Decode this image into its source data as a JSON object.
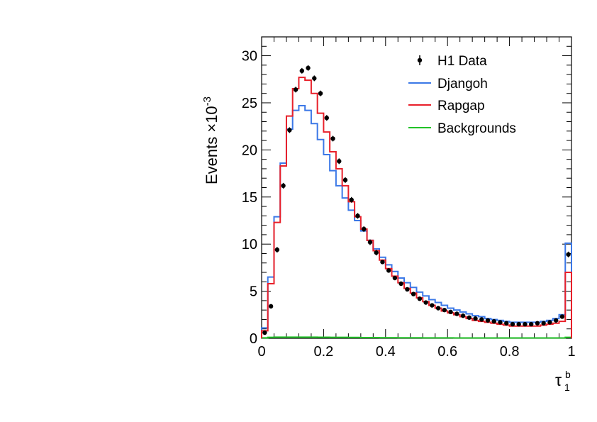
{
  "chart_data": {
    "type": "line",
    "xlabel_main": "τ",
    "xlabel_sub": "1",
    "xlabel_sup": "b",
    "ylabel": "Events  ×10",
    "ylabel_exp": "-3",
    "xlim": [
      0,
      1
    ],
    "ylim": [
      0,
      32
    ],
    "x_ticks": [
      0,
      0.2,
      0.4,
      0.6,
      0.8,
      1
    ],
    "x_tick_labels": [
      "0",
      "0.2",
      "0.4",
      "0.6",
      "0.8",
      "1"
    ],
    "y_ticks": [
      0,
      5,
      10,
      15,
      20,
      25,
      30
    ],
    "y_tick_labels": [
      "0",
      "5",
      "10",
      "15",
      "20",
      "25",
      "30"
    ],
    "bin_width": 0.02,
    "bins": 50,
    "legend": {
      "placement": "top-right",
      "entries": [
        "H1 Data",
        "Djangoh",
        "Rapgap",
        "Backgrounds"
      ]
    },
    "series": [
      {
        "name": "H1 Data",
        "kind": "points",
        "color": "#000000",
        "x": [
          0.01,
          0.03,
          0.05,
          0.07,
          0.09,
          0.11,
          0.13,
          0.15,
          0.17,
          0.19,
          0.21,
          0.23,
          0.25,
          0.27,
          0.29,
          0.31,
          0.33,
          0.35,
          0.37,
          0.39,
          0.41,
          0.43,
          0.45,
          0.47,
          0.49,
          0.51,
          0.53,
          0.55,
          0.57,
          0.59,
          0.61,
          0.63,
          0.65,
          0.67,
          0.69,
          0.71,
          0.73,
          0.75,
          0.77,
          0.79,
          0.81,
          0.83,
          0.85,
          0.87,
          0.89,
          0.91,
          0.93,
          0.95,
          0.97,
          0.99
        ],
        "values": [
          0.6,
          3.4,
          9.4,
          16.2,
          22.1,
          26.4,
          28.4,
          28.7,
          27.6,
          26.0,
          23.4,
          21.2,
          18.8,
          16.8,
          14.7,
          13.0,
          11.6,
          10.2,
          9.1,
          8.1,
          7.2,
          6.4,
          5.8,
          5.2,
          4.7,
          4.2,
          3.8,
          3.5,
          3.2,
          3.0,
          2.8,
          2.6,
          2.4,
          2.2,
          2.1,
          2.0,
          1.9,
          1.8,
          1.7,
          1.6,
          1.5,
          1.5,
          1.5,
          1.5,
          1.6,
          1.6,
          1.7,
          1.9,
          2.3,
          8.9
        ],
        "errors": [
          0.2,
          0.2,
          0.3,
          0.3,
          0.3,
          0.3,
          0.3,
          0.3,
          0.3,
          0.3,
          0.3,
          0.3,
          0.3,
          0.3,
          0.3,
          0.3,
          0.3,
          0.3,
          0.3,
          0.2,
          0.2,
          0.2,
          0.2,
          0.2,
          0.2,
          0.2,
          0.2,
          0.2,
          0.2,
          0.2,
          0.2,
          0.2,
          0.2,
          0.2,
          0.2,
          0.2,
          0.2,
          0.2,
          0.2,
          0.2,
          0.2,
          0.2,
          0.2,
          0.2,
          0.2,
          0.2,
          0.2,
          0.2,
          0.2,
          0.3
        ]
      },
      {
        "name": "Djangoh",
        "kind": "hist",
        "color": "#3b78e7",
        "values": [
          1.1,
          6.5,
          12.9,
          18.6,
          22.2,
          24.2,
          24.7,
          24.2,
          22.8,
          21.1,
          19.5,
          17.8,
          16.2,
          14.9,
          13.6,
          12.5,
          11.4,
          10.4,
          9.5,
          8.6,
          7.8,
          7.1,
          6.4,
          5.9,
          5.4,
          4.9,
          4.5,
          4.1,
          3.8,
          3.5,
          3.2,
          3.0,
          2.8,
          2.6,
          2.4,
          2.3,
          2.1,
          2.0,
          1.9,
          1.8,
          1.7,
          1.7,
          1.7,
          1.7,
          1.7,
          1.8,
          1.9,
          2.1,
          2.5,
          10.1
        ]
      },
      {
        "name": "Rapgap",
        "kind": "hist",
        "color": "#e8202a",
        "values": [
          0.8,
          5.8,
          12.3,
          18.3,
          23.6,
          26.5,
          27.7,
          27.4,
          26.0,
          23.9,
          21.9,
          19.8,
          18.0,
          16.2,
          14.5,
          12.9,
          11.6,
          10.4,
          9.3,
          8.3,
          7.4,
          6.6,
          5.9,
          5.3,
          4.8,
          4.3,
          3.9,
          3.5,
          3.2,
          2.9,
          2.7,
          2.5,
          2.3,
          2.1,
          1.9,
          1.8,
          1.7,
          1.6,
          1.5,
          1.4,
          1.3,
          1.3,
          1.3,
          1.3,
          1.3,
          1.4,
          1.5,
          1.6,
          1.8,
          7.0
        ]
      },
      {
        "name": "Backgrounds",
        "kind": "hist",
        "color": "#21c227",
        "values": [
          0.05,
          0.1,
          0.12,
          0.12,
          0.12,
          0.12,
          0.12,
          0.12,
          0.12,
          0.11,
          0.11,
          0.1,
          0.1,
          0.1,
          0.09,
          0.09,
          0.08,
          0.08,
          0.08,
          0.07,
          0.07,
          0.07,
          0.06,
          0.06,
          0.06,
          0.06,
          0.05,
          0.05,
          0.05,
          0.05,
          0.05,
          0.04,
          0.04,
          0.04,
          0.04,
          0.04,
          0.04,
          0.04,
          0.04,
          0.04,
          0.04,
          0.04,
          0.04,
          0.04,
          0.04,
          0.04,
          0.04,
          0.04,
          0.04,
          0.1
        ]
      }
    ]
  }
}
